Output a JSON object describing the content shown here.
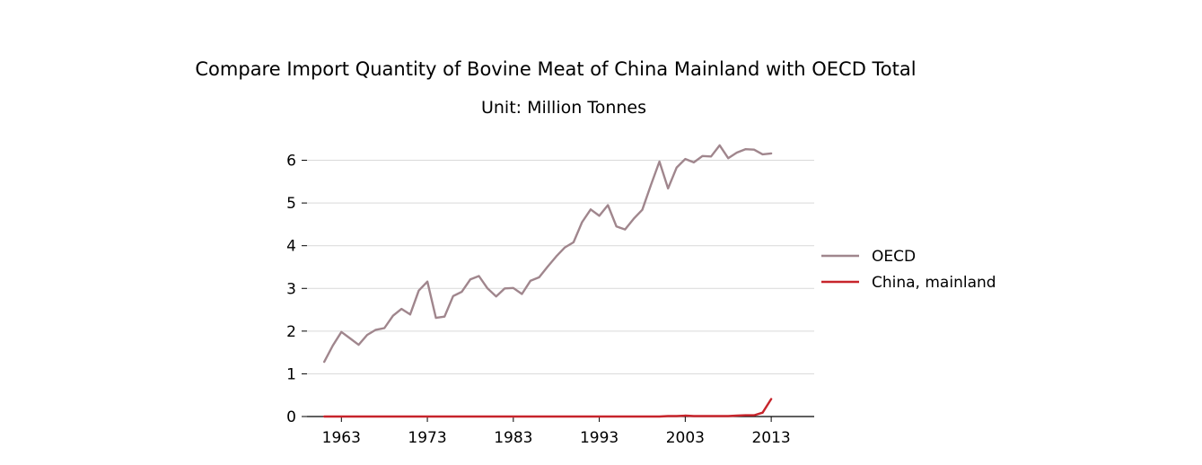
{
  "chart_data": {
    "type": "line",
    "title": "Compare Import Quantity of Bovine Meat of China Mainland with OECD Total",
    "subtitle": "Unit: Million Tonnes",
    "xlabel": "",
    "ylabel": "",
    "xlim": [
      1959,
      2018
    ],
    "ylim": [
      0,
      6.6
    ],
    "x_ticks": [
      1963,
      1973,
      1983,
      1993,
      2003,
      2013
    ],
    "y_ticks": [
      0,
      1,
      2,
      3,
      4,
      5,
      6
    ],
    "grid": "horizontal",
    "legend_position": "right",
    "x": [
      1961,
      1962,
      1963,
      1964,
      1965,
      1966,
      1967,
      1968,
      1969,
      1970,
      1971,
      1972,
      1973,
      1974,
      1975,
      1976,
      1977,
      1978,
      1979,
      1980,
      1981,
      1982,
      1983,
      1984,
      1985,
      1986,
      1987,
      1988,
      1989,
      1990,
      1991,
      1992,
      1993,
      1994,
      1995,
      1996,
      1997,
      1998,
      1999,
      2000,
      2001,
      2002,
      2003,
      2004,
      2005,
      2006,
      2007,
      2008,
      2009,
      2010,
      2011,
      2012,
      2013
    ],
    "series": [
      {
        "name": "OECD",
        "color": "#a0868d",
        "values": [
          1.28,
          1.66,
          1.98,
          1.83,
          1.68,
          1.91,
          2.03,
          2.07,
          2.36,
          2.52,
          2.39,
          2.95,
          3.16,
          2.31,
          2.34,
          2.82,
          2.92,
          3.21,
          3.29,
          3.0,
          2.81,
          3.0,
          3.01,
          2.87,
          3.18,
          3.26,
          3.51,
          3.75,
          3.96,
          4.08,
          4.55,
          4.85,
          4.7,
          4.95,
          4.45,
          4.38,
          4.63,
          4.84,
          5.42,
          5.97,
          5.34,
          5.83,
          6.03,
          5.95,
          6.1,
          6.09,
          6.35,
          6.05,
          6.18,
          6.26,
          6.25,
          6.14,
          6.16
        ]
      },
      {
        "name": "China, mainland",
        "color": "#c7242b",
        "values": [
          0.0,
          0.0,
          0.0,
          0.0,
          0.0,
          0.0,
          0.0,
          0.0,
          0.0,
          0.0,
          0.0,
          0.0,
          0.0,
          0.0,
          0.0,
          0.0,
          0.0,
          0.0,
          0.0,
          0.0,
          0.0,
          0.0,
          0.0,
          0.0,
          0.0,
          0.0,
          0.0,
          0.0,
          0.0,
          0.0,
          0.0,
          0.0,
          0.0,
          0.0,
          0.0,
          0.0,
          0.0,
          0.0,
          0.0,
          0.0,
          0.01,
          0.01,
          0.02,
          0.01,
          0.01,
          0.01,
          0.01,
          0.01,
          0.02,
          0.03,
          0.03,
          0.09,
          0.41
        ]
      }
    ]
  }
}
